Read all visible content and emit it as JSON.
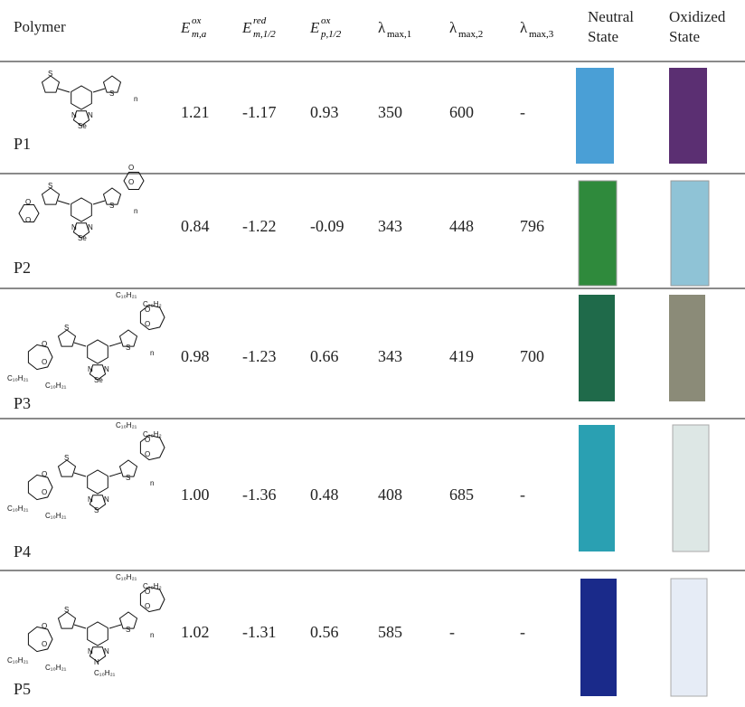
{
  "table": {
    "columns": [
      {
        "text": "Polymer"
      },
      {
        "base": "E",
        "sup": "ox",
        "sub": "m,a"
      },
      {
        "base": "E",
        "sup": "red",
        "sub": "m,1/2"
      },
      {
        "base": "E",
        "sup": "ox",
        "sub": "p,1/2"
      },
      {
        "base": "λ",
        "sub": "max,1"
      },
      {
        "base": "λ",
        "sub": "max,2"
      },
      {
        "base": "λ",
        "sub": "max,3"
      },
      {
        "lines": [
          "Neutral",
          "State"
        ]
      },
      {
        "lines": [
          "Oxidized",
          "State"
        ]
      }
    ],
    "rows": [
      {
        "label": "P1",
        "values": [
          "1.21",
          "-1.17",
          "0.93",
          "350",
          "600",
          "-"
        ],
        "structure_labels": [
          "S",
          "S",
          "N",
          "N",
          "Se",
          "n"
        ]
      },
      {
        "label": "P2",
        "values": [
          "0.84",
          "-1.22",
          "-0.09",
          "343",
          "448",
          "796"
        ],
        "structure_labels": [
          "S",
          "S",
          "N",
          "N",
          "Se",
          "n",
          "O",
          "O",
          "O",
          "O"
        ]
      },
      {
        "label": "P3",
        "values": [
          "0.98",
          "-1.23",
          "0.66",
          "343",
          "419",
          "700"
        ],
        "structure_labels": [
          "S",
          "S",
          "N",
          "N",
          "Se",
          "n",
          "O",
          "O",
          "O",
          "O",
          "C₁₀H₂₁",
          "C₁₀H₂",
          "C₁₀H₂₁",
          "C₁₀H₂₁"
        ]
      },
      {
        "label": "P4",
        "values": [
          "1.00",
          "-1.36",
          "0.48",
          "408",
          "685",
          "-"
        ],
        "structure_labels": [
          "S",
          "S",
          "N",
          "N",
          "S",
          "n",
          "O",
          "O",
          "O",
          "O",
          "C₁₀H₂₁",
          "C₁₀H₂",
          "C₁₀H₂₁",
          "C₁₀H₂₁"
        ]
      },
      {
        "label": "P5",
        "values": [
          "1.02",
          "-1.31",
          "0.56",
          "585",
          "-",
          "-"
        ],
        "structure_labels": [
          "S",
          "S",
          "N",
          "N",
          "N",
          "n",
          "O",
          "O",
          "O",
          "O",
          "C₁₀H₂₁",
          "C₁₀H₂",
          "C₁₀H₂₁",
          "C₁₀H₂₁",
          "C₁₀H₂₁"
        ]
      }
    ]
  }
}
